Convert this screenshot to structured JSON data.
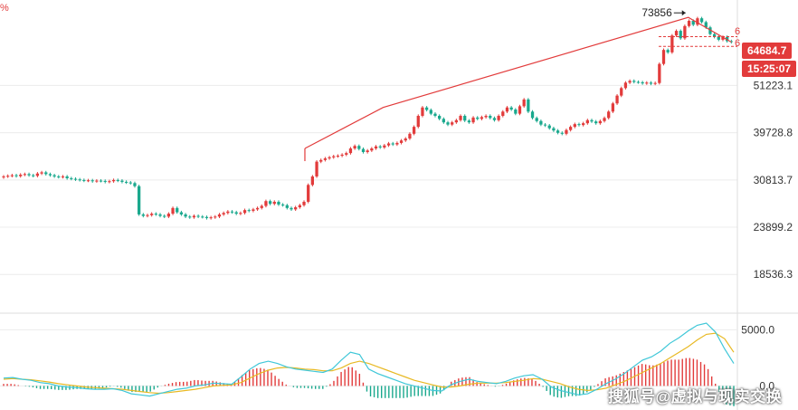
{
  "corner_mark": "%",
  "watermark": "搜狐号@虚拟与现实交换",
  "badges": {
    "price": "64684.7",
    "time": "15:25:07"
  },
  "colors": {
    "up": "#e23b3b",
    "down": "#19a88d",
    "ma_fast": "#3fc7d8",
    "ma_slow": "#e8b923",
    "trend": "#e23b3b",
    "grid": "#ececec"
  },
  "chart_data": [
    {
      "type": "candlestick",
      "title": "",
      "y_axis_ticks": [
        "51223.1",
        "39728.8",
        "30813.7",
        "23899.2",
        "18536.3"
      ],
      "y_axis_tick_values": [
        51223.1,
        39728.8,
        30813.7,
        23899.2,
        18536.3
      ],
      "y_scale": "log",
      "ylim": [
        15500,
        78000
      ],
      "x_count": 136,
      "closes": [
        31400,
        31500,
        31600,
        31450,
        31700,
        31800,
        31600,
        31500,
        31900,
        32100,
        31800,
        31600,
        31400,
        31300,
        31400,
        31100,
        31000,
        30900,
        30800,
        30700,
        30750,
        30600,
        30700,
        30650,
        30500,
        30600,
        30800,
        30700,
        30500,
        30400,
        30300,
        29800,
        25600,
        25400,
        25500,
        25700,
        25600,
        25400,
        25300,
        25700,
        26500,
        25900,
        25600,
        25300,
        25200,
        25400,
        25300,
        25250,
        25100,
        25200,
        25300,
        25600,
        25800,
        26000,
        25900,
        25700,
        25800,
        26200,
        26100,
        26300,
        26500,
        26800,
        27500,
        27100,
        27400,
        27000,
        26900,
        26500,
        26300,
        26600,
        26900,
        27400,
        30000,
        31400,
        34000,
        34300,
        34600,
        34800,
        35000,
        35100,
        35300,
        35600,
        36500,
        37000,
        36400,
        35800,
        36100,
        36500,
        36900,
        36700,
        37100,
        37500,
        37300,
        37600,
        38100,
        38500,
        39500,
        41000,
        43500,
        45500,
        44900,
        44000,
        43500,
        42800,
        42000,
        41500,
        42000,
        42500,
        43500,
        42400,
        42000,
        43100,
        42800,
        43200,
        43500,
        43000,
        42500,
        43500,
        44500,
        45500,
        45000,
        44000,
        45800,
        47500,
        44500,
        43000,
        42300,
        41500,
        41300,
        40700,
        40200,
        39700,
        39500,
        40300,
        41000,
        41600
      ],
      "closes_tail": [
        41400,
        41800,
        42500,
        42200,
        41800,
        42300,
        43000,
        44500,
        46500,
        48500,
        50500,
        52000,
        52500,
        52200,
        52100,
        51800,
        52000,
        51700,
        51900,
        57500,
        62000,
        61200,
        67000,
        68700,
        66000,
        70500,
        72500,
        71000,
        73500,
        72000,
        70000,
        67500,
        66500,
        65500,
        66500,
        65000,
        64684.7
      ],
      "annotations": {
        "high_label": "73856",
        "high_value": 73856,
        "right_cut_labels": [
          "6",
          "6"
        ],
        "trend_points": [
          [
            77,
            36500
          ],
          [
            97,
            45500
          ],
          [
            175,
            73856
          ],
          [
            186,
            64684.7
          ]
        ],
        "dashed_levels": [
          66600,
          63200
        ]
      }
    },
    {
      "type": "line",
      "title": "",
      "y_axis_ticks": [
        "5000.0",
        "0.0"
      ],
      "y_axis_tick_values": [
        5000,
        0
      ],
      "ylim": [
        -1500,
        6000
      ],
      "series": [
        {
          "role": "fast",
          "values": [
            700,
            750,
            600,
            500,
            300,
            200,
            0,
            -100,
            -150,
            -250,
            -300,
            -300,
            -250,
            -400,
            -700,
            -800,
            -900,
            -700,
            -500,
            -300,
            -200,
            0,
            100,
            250,
            200,
            150,
            800,
            1500,
            2000,
            2200,
            2000,
            1700,
            1500,
            1400,
            1300,
            1200,
            1500,
            2300,
            3000,
            2800,
            1500,
            1100,
            800,
            500,
            200,
            0,
            -200,
            -400,
            -450,
            100,
            400,
            600,
            400,
            300,
            200,
            400,
            700,
            900,
            1000,
            600,
            -100,
            -400,
            -600,
            -800,
            -700,
            -300,
            200,
            600,
            1100,
            1700,
            2300,
            2600,
            3100,
            3800,
            4300,
            4900,
            5400,
            5600,
            4800,
            3300,
            2000
          ]
        },
        {
          "role": "slow",
          "values": [
            600,
            650,
            600,
            550,
            450,
            350,
            200,
            100,
            0,
            -100,
            -150,
            -200,
            -250,
            -300,
            -400,
            -500,
            -600,
            -650,
            -600,
            -500,
            -400,
            -300,
            -150,
            0,
            50,
            100,
            300,
            700,
            1100,
            1400,
            1600,
            1650,
            1600,
            1500,
            1450,
            1350,
            1350,
            1600,
            2000,
            2200,
            2000,
            1700,
            1400,
            1100,
            800,
            500,
            300,
            100,
            -100,
            -100,
            0,
            150,
            250,
            250,
            250,
            300,
            400,
            500,
            650,
            600,
            400,
            200,
            -100,
            -300,
            -400,
            -350,
            -200,
            100,
            400,
            800,
            1200,
            1600,
            2000,
            2500,
            3000,
            3500,
            4100,
            4600,
            4700,
            4200,
            3000
          ]
        }
      ]
    }
  ]
}
